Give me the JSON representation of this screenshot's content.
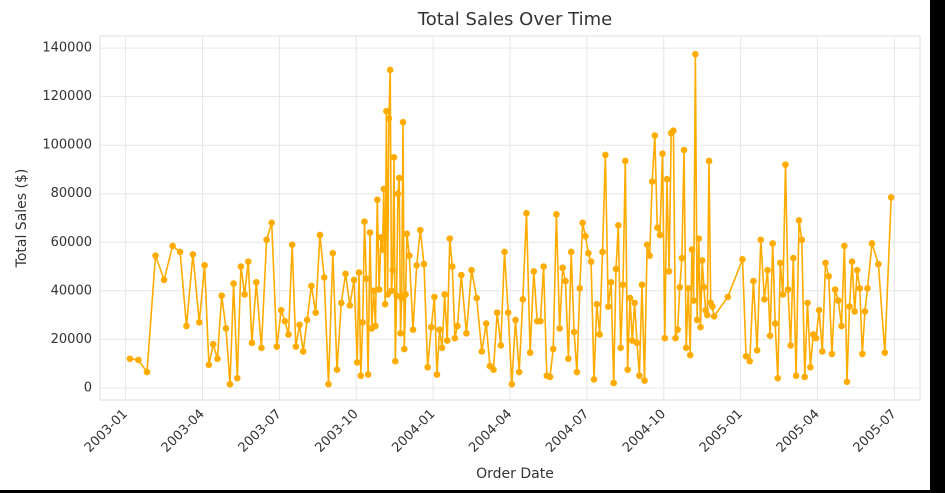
{
  "chart_data": {
    "type": "line",
    "title": "Total Sales Over Time",
    "xlabel": "Order Date",
    "ylabel": "Total Sales ($)",
    "color": "#ffab00",
    "grid": true,
    "x": [
      "2003-01",
      "2003-01",
      "2003-01",
      "2003-02",
      "2003-02",
      "2003-02",
      "2003-03",
      "2003-03",
      "2003-03",
      "2003-03",
      "2003-04",
      "2003-04",
      "2003-04",
      "2003-04",
      "2003-04",
      "2003-04",
      "2003-05",
      "2003-05",
      "2003-05",
      "2003-05",
      "2003-05",
      "2003-05",
      "2003-05",
      "2003-06",
      "2003-06",
      "2003-06",
      "2003-06",
      "2003-06",
      "2003-07",
      "2003-07",
      "2003-07",
      "2003-07",
      "2003-07",
      "2003-07",
      "2003-07",
      "2003-08",
      "2003-08",
      "2003-08",
      "2003-08",
      "2003-08",
      "2003-08",
      "2003-09",
      "2003-09",
      "2003-09",
      "2003-09",
      "2003-09",
      "2003-09",
      "2003-10",
      "2003-10",
      "2003-10",
      "2003-10",
      "2003-10",
      "2003-10",
      "2003-10",
      "2003-10",
      "2003-10",
      "2003-10",
      "2003-10",
      "2003-10",
      "2003-10",
      "2003-10",
      "2003-11",
      "2003-11",
      "2003-11",
      "2003-11",
      "2003-11",
      "2003-11",
      "2003-11",
      "2003-11",
      "2003-11",
      "2003-11",
      "2003-11",
      "2003-11",
      "2003-11",
      "2003-11",
      "2003-11",
      "2003-11",
      "2003-11",
      "2003-11",
      "2003-11",
      "2003-11",
      "2003-12",
      "2003-12",
      "2003-12",
      "2003-12",
      "2003-12",
      "2003-12",
      "2003-12",
      "2004-01",
      "2004-01",
      "2004-01",
      "2004-01",
      "2004-01",
      "2004-01",
      "2004-01",
      "2004-01",
      "2004-01",
      "2004-01",
      "2004-02",
      "2004-02",
      "2004-02",
      "2004-02",
      "2004-02",
      "2004-03",
      "2004-03",
      "2004-03",
      "2004-03",
      "2004-03",
      "2004-03",
      "2004-03",
      "2004-04",
      "2004-04",
      "2004-04",
      "2004-04",
      "2004-04",
      "2004-04",
      "2004-04",
      "2004-05",
      "2004-05",
      "2004-05",
      "2004-05",
      "2004-05",
      "2004-05",
      "2004-05",
      "2004-05",
      "2004-06",
      "2004-06",
      "2004-06",
      "2004-06",
      "2004-06",
      "2004-06",
      "2004-06",
      "2004-06",
      "2004-06",
      "2004-07",
      "2004-07",
      "2004-07",
      "2004-07",
      "2004-07",
      "2004-07",
      "2004-07",
      "2004-07",
      "2004-07",
      "2004-08",
      "2004-08",
      "2004-08",
      "2004-08",
      "2004-08",
      "2004-08",
      "2004-08",
      "2004-08",
      "2004-08",
      "2004-08",
      "2004-08",
      "2004-09",
      "2004-09",
      "2004-09",
      "2004-09",
      "2004-09",
      "2004-09",
      "2004-09",
      "2004-09",
      "2004-09",
      "2004-09",
      "2004-10",
      "2004-10",
      "2004-10",
      "2004-10",
      "2004-10",
      "2004-10",
      "2004-10",
      "2004-10",
      "2004-10",
      "2004-10",
      "2004-10",
      "2004-10",
      "2004-11",
      "2004-11",
      "2004-11",
      "2004-11",
      "2004-11",
      "2004-11",
      "2004-11",
      "2004-11",
      "2004-11",
      "2004-11",
      "2004-11",
      "2004-11",
      "2004-11",
      "2004-11",
      "2004-11",
      "2004-12",
      "2005-01",
      "2005-01",
      "2005-01",
      "2005-01",
      "2005-01",
      "2005-01",
      "2005-01",
      "2005-02",
      "2005-02",
      "2005-02",
      "2005-02",
      "2005-02",
      "2005-02",
      "2005-02",
      "2005-02",
      "2005-02",
      "2005-02",
      "2005-03",
      "2005-03",
      "2005-03",
      "2005-03",
      "2005-03",
      "2005-03",
      "2005-03",
      "2005-03",
      "2005-03",
      "2005-04",
      "2005-04",
      "2005-04",
      "2005-04",
      "2005-04",
      "2005-04",
      "2005-04",
      "2005-04",
      "2005-05",
      "2005-05",
      "2005-05",
      "2005-05",
      "2005-05",
      "2005-05",
      "2005-05",
      "2005-05",
      "2005-05",
      "2005-05",
      "2005-06",
      "2005-06",
      "2005-06",
      "2005-06"
    ],
    "values": [
      12000,
      11500,
      6500,
      54500,
      44500,
      58500,
      56000,
      25500,
      55000,
      27000,
      50500,
      9500,
      18000,
      12000,
      38000,
      24500,
      1500,
      43000,
      4000,
      50000,
      38500,
      52000,
      18500,
      43500,
      16500,
      61000,
      68000,
      17000,
      32000,
      27500,
      22000,
      59000,
      17000,
      26000,
      15000,
      28000,
      42000,
      31000,
      63000,
      45500,
      1500,
      55500,
      7500,
      35000,
      47000,
      34000,
      44500,
      10500,
      47500,
      5000,
      27000,
      68500,
      45000,
      5500,
      64000,
      24500,
      40000,
      25500,
      77500,
      40500,
      62000,
      57000,
      82000,
      34500,
      114000,
      38500,
      111000,
      131000,
      40000,
      48500,
      95000,
      11000,
      38000,
      80000,
      86500,
      22500,
      37000,
      109500,
      16000,
      38500,
      63500,
      54500,
      24000,
      50500,
      65000,
      51000,
      8500,
      25000,
      37500,
      5500,
      24000,
      16500,
      38500,
      19500,
      61500,
      50000,
      20500,
      25500,
      46500,
      22500,
      48500,
      37000,
      15000,
      26500,
      9000,
      7500,
      31000,
      17500,
      56000,
      31000,
      1500,
      28000,
      6500,
      36500,
      72000,
      14500,
      48000,
      27500,
      27500,
      50000,
      5000,
      4500,
      16000,
      71500,
      24500,
      49500,
      44000,
      12000,
      56000,
      23000,
      6500,
      41000,
      68000,
      62500,
      55500,
      52000,
      3500,
      34500,
      22000,
      56000,
      96000,
      33500,
      43500,
      2000,
      49000,
      67000,
      16500,
      42500,
      93500,
      7500,
      37000,
      19500,
      35000,
      18500,
      5000,
      42500,
      3000,
      59000,
      54500,
      85000,
      104000,
      66000,
      63000,
      96500,
      20500,
      86000,
      48000,
      105000,
      106000,
      20500,
      24000,
      41500,
      53500,
      98000,
      16500,
      41000,
      13500,
      57000,
      36000,
      137500,
      28000,
      61500,
      25000,
      52500,
      41500,
      32000,
      30000,
      93500,
      35000,
      33500,
      29500,
      37500,
      53000,
      13000,
      11000,
      44000,
      15500,
      61000,
      36500,
      48500,
      21500,
      59500,
      26500,
      4000,
      51500,
      38500,
      92000,
      40500,
      17500,
      53500,
      5000,
      69000,
      61000,
      4500,
      35000,
      8500,
      22000,
      20500,
      32000,
      15000,
      51500,
      46000,
      14000,
      40500,
      36000,
      25500,
      58500,
      2500,
      33500,
      52000,
      31500,
      48500,
      41000,
      14000,
      31500,
      41000,
      59500,
      51000,
      14500,
      78500
    ],
    "xlim": [
      "2002-12",
      "2005-08"
    ],
    "xticks": [
      "2003-01",
      "2003-04",
      "2003-07",
      "2003-10",
      "2004-01",
      "2004-04",
      "2004-07",
      "2004-10",
      "2005-01",
      "2005-04",
      "2005-07"
    ],
    "ylim": [
      -5000,
      145000
    ],
    "yticks": [
      0,
      20000,
      40000,
      60000,
      80000,
      100000,
      120000,
      140000
    ]
  }
}
